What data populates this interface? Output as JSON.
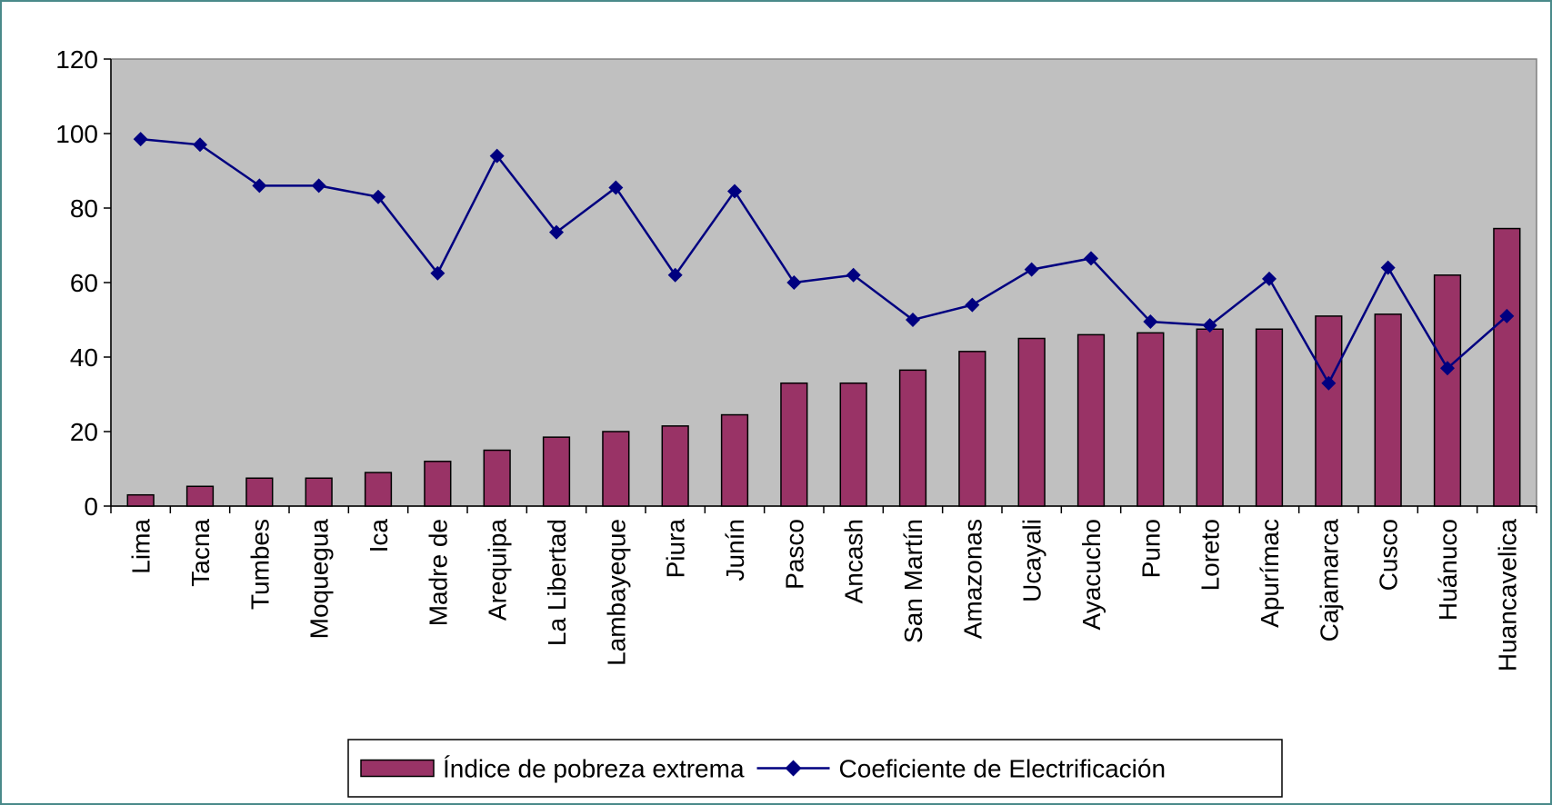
{
  "chart_data": {
    "type": "bar_line",
    "categories": [
      "Lima",
      "Tacna",
      "Tumbes",
      "Moquegua",
      "Ica",
      "Madre de",
      "Arequipa",
      "La Libertad",
      "Lambayeque",
      "Piura",
      "Junín",
      "Pasco",
      "Ancash",
      "San Martín",
      "Amazonas",
      "Ucayali",
      "Ayacucho",
      "Puno",
      "Loreto",
      "Apurímac",
      "Cajamarca",
      "Cusco",
      "Huánuco",
      "Huancavelica"
    ],
    "series": [
      {
        "name": "Índice de pobreza extrema",
        "type": "bar",
        "color": "#993366",
        "values": [
          3,
          5.3,
          7.5,
          7.5,
          9,
          12,
          15,
          18.5,
          20,
          21.5,
          24.5,
          33,
          33,
          36.5,
          41.5,
          45,
          46,
          46.5,
          47.5,
          47.5,
          51,
          51.5,
          62,
          74.5
        ]
      },
      {
        "name": "Coeficiente de Electrificación",
        "type": "line",
        "color": "#000080",
        "values": [
          98.5,
          97,
          86,
          86,
          83,
          62.5,
          94,
          73.5,
          85.5,
          62,
          84.5,
          60,
          62,
          50,
          54,
          63.5,
          66.5,
          49.5,
          48.5,
          61,
          33,
          64,
          37,
          51
        ]
      }
    ],
    "ylim": [
      0,
      120
    ],
    "yticks": [
      0,
      20,
      40,
      60,
      80,
      100,
      120
    ],
    "legend": "bottom",
    "plot_background": "#c0c0c0"
  }
}
